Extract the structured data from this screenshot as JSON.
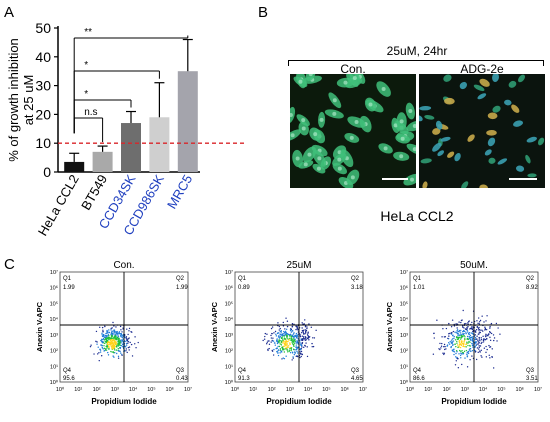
{
  "panels": {
    "a": "A",
    "b": "B",
    "c": "C"
  },
  "panel_a": {
    "chart_data": {
      "type": "bar",
      "categories": [
        "HeLa CCL2",
        "BT549",
        "CCD34SK",
        "CCD986SK",
        "MRC5"
      ],
      "category_colors": [
        "#000000",
        "#000000",
        "#1f3fbf",
        "#1f3fbf",
        "#1f3fbf"
      ],
      "values": [
        3.5,
        7,
        17,
        19,
        35
      ],
      "errors": [
        3,
        2,
        4,
        12,
        11
      ],
      "bar_colors": [
        "#111111",
        "#a9a9a9",
        "#6e6e6e",
        "#cfcfcf",
        "#a4a4ac"
      ],
      "ylabel": "% of growth inhibition at 25 uM",
      "ylabel_lines": [
        "% of growth inhibition",
        "at 25 uM"
      ],
      "ylim": [
        0,
        50
      ],
      "yticks": [
        0,
        10,
        20,
        30,
        40,
        50
      ],
      "threshold": 10,
      "threshold_color": "#d9262a",
      "significance": [
        {
          "from": 0,
          "to": 4,
          "label": "**"
        },
        {
          "from": 0,
          "to": 3,
          "label": "*"
        },
        {
          "from": 0,
          "to": 2,
          "label": "*"
        },
        {
          "from": 0,
          "to": 1,
          "label": "n.s"
        }
      ]
    }
  },
  "panel_b": {
    "condition": "25uM, 24hr",
    "left_label": "Con.",
    "right_label": "ADG-2e",
    "caption": "HeLa CCL2"
  },
  "panel_c": {
    "plots": [
      {
        "title": "Con.",
        "q1": "1.99",
        "q2": "1.99",
        "q3": "0.43",
        "q4": "95.6",
        "spread": 0.28
      },
      {
        "title": "25uM",
        "q1": "0.89",
        "q2": "3.18",
        "q3": "4.65",
        "q4": "91.3",
        "spread": 0.34
      },
      {
        "title": "50uM.",
        "q1": "1.01",
        "q2": "8.92",
        "q3": "3.51",
        "q4": "86.6",
        "spread": 0.42
      }
    ],
    "quadrant_names": {
      "q1": "Q1",
      "q2": "Q2",
      "q3": "Q3",
      "q4": "Q4"
    },
    "ylabel": "Anexin V-APC",
    "xlabel": "Propidium Iodide",
    "axis_ticks": [
      "10⁰",
      "10¹",
      "10²",
      "10³",
      "10⁴",
      "10⁵",
      "10⁶",
      "10⁷"
    ]
  }
}
